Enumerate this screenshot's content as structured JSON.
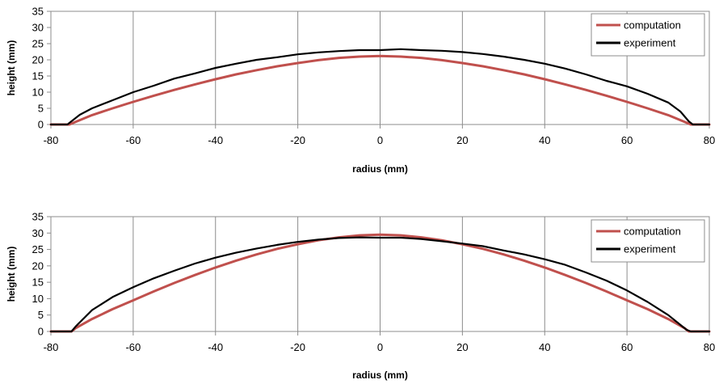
{
  "chart_data": [
    {
      "type": "line",
      "title": "",
      "xlabel": "radius (mm)",
      "ylabel": "height (mm)",
      "xlim": [
        -80,
        80
      ],
      "ylim": [
        0,
        35
      ],
      "x_ticks": [
        -80,
        -60,
        -40,
        -20,
        0,
        20,
        40,
        60,
        80
      ],
      "y_ticks": [
        0,
        5,
        10,
        15,
        20,
        25,
        30,
        35
      ],
      "grid": "vertical",
      "legend_position": "top-right",
      "series": [
        {
          "name": "computation",
          "color": "#c0504d",
          "x": [
            -80,
            -75.5,
            -74,
            -70,
            -65,
            -60,
            -55,
            -50,
            -45,
            -40,
            -35,
            -30,
            -25,
            -20,
            -15,
            -10,
            -5,
            0,
            5,
            10,
            15,
            20,
            25,
            30,
            35,
            40,
            45,
            50,
            55,
            60,
            65,
            70,
            74,
            75.5,
            80
          ],
          "y": [
            0,
            0,
            0.8,
            2.9,
            5.0,
            7.0,
            8.9,
            10.7,
            12.4,
            14.0,
            15.5,
            16.8,
            18.0,
            19.0,
            19.9,
            20.6,
            21.0,
            21.2,
            21.0,
            20.6,
            19.9,
            19.0,
            18.0,
            16.8,
            15.5,
            14.0,
            12.4,
            10.7,
            8.9,
            7.0,
            5.0,
            2.9,
            0.8,
            0,
            0
          ]
        },
        {
          "name": "experiment",
          "color": "#000000",
          "x": [
            -80,
            -76,
            -75,
            -73,
            -70,
            -65,
            -60,
            -55,
            -50,
            -45,
            -40,
            -35,
            -30,
            -25,
            -20,
            -15,
            -10,
            -5,
            0,
            5,
            10,
            15,
            20,
            25,
            30,
            35,
            40,
            45,
            50,
            55,
            60,
            65,
            70,
            73,
            75,
            76,
            80
          ],
          "y": [
            0,
            0,
            1.0,
            3.0,
            5.0,
            7.5,
            10.0,
            12.0,
            14.2,
            15.8,
            17.5,
            18.8,
            20.0,
            20.8,
            21.7,
            22.3,
            22.7,
            23.0,
            23.0,
            23.3,
            23.0,
            22.8,
            22.4,
            21.8,
            21.0,
            20.0,
            18.8,
            17.3,
            15.5,
            13.5,
            11.8,
            9.5,
            6.8,
            4.0,
            1.0,
            0,
            0
          ]
        }
      ]
    },
    {
      "type": "line",
      "title": "",
      "xlabel": "radius (mm)",
      "ylabel": "height (mm)",
      "xlim": [
        -80,
        80
      ],
      "ylim": [
        0,
        35
      ],
      "x_ticks": [
        -80,
        -60,
        -40,
        -20,
        0,
        20,
        40,
        60,
        80
      ],
      "y_ticks": [
        0,
        5,
        10,
        15,
        20,
        25,
        30,
        35
      ],
      "grid": "vertical",
      "legend_position": "top-right",
      "series": [
        {
          "name": "computation",
          "color": "#c0504d",
          "x": [
            -80,
            -75,
            -74,
            -70,
            -65,
            -60,
            -55,
            -50,
            -45,
            -40,
            -35,
            -30,
            -25,
            -20,
            -15,
            -10,
            -5,
            0,
            5,
            10,
            15,
            20,
            25,
            30,
            35,
            40,
            45,
            50,
            55,
            60,
            65,
            70,
            74,
            75,
            80
          ],
          "y": [
            0,
            0,
            1.0,
            3.8,
            6.8,
            9.5,
            12.2,
            14.8,
            17.2,
            19.5,
            21.6,
            23.5,
            25.2,
            26.6,
            27.8,
            28.7,
            29.3,
            29.5,
            29.3,
            28.7,
            27.8,
            26.6,
            25.2,
            23.5,
            21.6,
            19.5,
            17.2,
            14.8,
            12.2,
            9.5,
            6.8,
            3.8,
            1.0,
            0,
            0
          ]
        },
        {
          "name": "experiment",
          "color": "#000000",
          "x": [
            -80,
            -75,
            -74,
            -70,
            -65,
            -60,
            -55,
            -50,
            -45,
            -40,
            -35,
            -30,
            -25,
            -20,
            -15,
            -10,
            -5,
            0,
            5,
            10,
            15,
            20,
            25,
            30,
            35,
            40,
            45,
            50,
            55,
            60,
            65,
            70,
            73,
            74.5,
            75.5,
            80
          ],
          "y": [
            0,
            0,
            1.5,
            6.5,
            10.5,
            13.5,
            16.2,
            18.5,
            20.7,
            22.5,
            24.0,
            25.3,
            26.4,
            27.3,
            28.0,
            28.5,
            28.7,
            28.6,
            28.6,
            28.2,
            27.5,
            26.8,
            26.0,
            24.7,
            23.5,
            22.0,
            20.3,
            18.0,
            15.5,
            12.5,
            9.0,
            5.0,
            2.0,
            0.5,
            0,
            0
          ]
        }
      ]
    }
  ]
}
